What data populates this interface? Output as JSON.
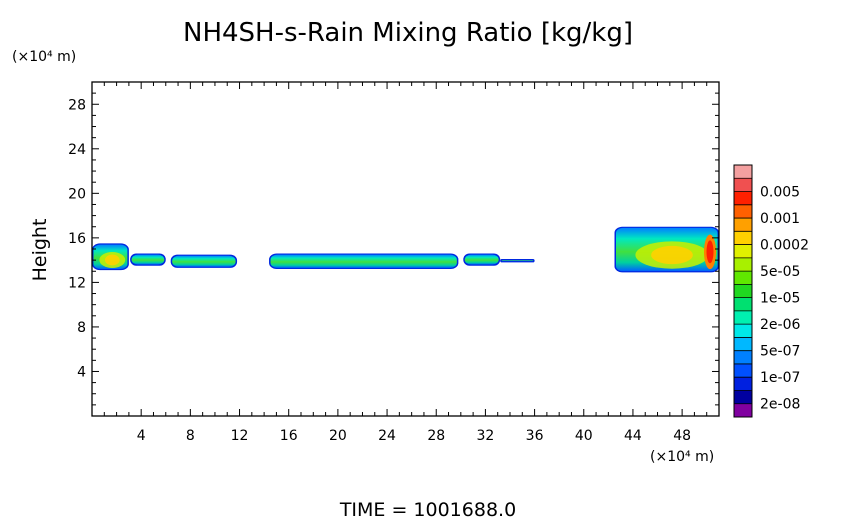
{
  "chart_data": {
    "type": "heatmap",
    "title": "NH4SH-s-Rain Mixing Ratio [kg/kg]",
    "ylabel": "Height",
    "y_unit": "(×10⁴ m)",
    "x_unit": "(×10⁴ m)",
    "xlim": [
      0,
      51
    ],
    "ylim": [
      0,
      30
    ],
    "x_ticks": [
      4,
      8,
      12,
      16,
      20,
      24,
      28,
      32,
      36,
      40,
      44,
      48
    ],
    "y_ticks": [
      4,
      8,
      12,
      16,
      20,
      24,
      28
    ],
    "time_label": "TIME = 1001688.0",
    "colorbar": {
      "levels": [
        {
          "label": "",
          "color": "#f4a0a0"
        },
        {
          "label": "0.005",
          "color": "#f05050"
        },
        {
          "label": "",
          "color": "#ff2000"
        },
        {
          "label": "0.001",
          "color": "#ff6000"
        },
        {
          "label": "",
          "color": "#ffa000"
        },
        {
          "label": "0.0002",
          "color": "#ffd000"
        },
        {
          "label": "",
          "color": "#e0f000"
        },
        {
          "label": "5e-05",
          "color": "#a8f000"
        },
        {
          "label": "",
          "color": "#60e800"
        },
        {
          "label": "1e-05",
          "color": "#20d820"
        },
        {
          "label": "",
          "color": "#00e070"
        },
        {
          "label": "2e-06",
          "color": "#00f0b0"
        },
        {
          "label": "",
          "color": "#00e8e8"
        },
        {
          "label": "5e-07",
          "color": "#00b8ff"
        },
        {
          "label": "",
          "color": "#0080ff"
        },
        {
          "label": "1e-07",
          "color": "#0050ff"
        },
        {
          "label": "",
          "color": "#0020e0"
        },
        {
          "label": "2e-08",
          "color": "#0000a0"
        },
        {
          "label": "",
          "color": "#8000a0"
        }
      ]
    },
    "series": [
      {
        "x": [
          0,
          3
        ],
        "y": [
          13.1,
          15.5
        ],
        "intensity": 0.55
      },
      {
        "x": [
          3.1,
          6
        ],
        "y": [
          13.5,
          14.6
        ],
        "intensity": 0.35
      },
      {
        "x": [
          6.4,
          11.8
        ],
        "y": [
          13.3,
          14.5
        ],
        "intensity": 0.35
      },
      {
        "x": [
          14.4,
          29.8
        ],
        "y": [
          13.2,
          14.6
        ],
        "intensity": 0.35
      },
      {
        "x": [
          30.2,
          33.2
        ],
        "y": [
          13.5,
          14.6
        ],
        "intensity": 0.3
      },
      {
        "x": [
          33.2,
          36
        ],
        "y": [
          13.8,
          14.1
        ],
        "intensity": 0.05
      },
      {
        "x": [
          42.5,
          51
        ],
        "y": [
          12.9,
          17
        ],
        "intensity": 0.65
      }
    ]
  }
}
